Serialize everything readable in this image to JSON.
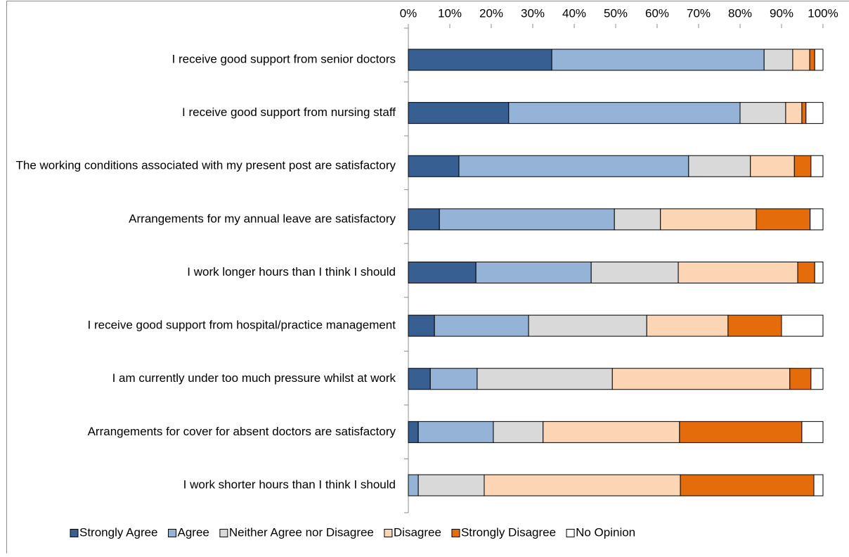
{
  "chart_data": {
    "type": "stacked_barh",
    "categories": [
      "I receive good support from senior doctors",
      "I receive good support from nursing staff",
      "The working conditions associated with my present post are satisfactory",
      "Arrangements for my annual leave are satisfactory",
      "I work longer hours than I think I should",
      "I receive good support from hospital/practice management",
      "I am currently under too much pressure whilst at work",
      "Arrangements for cover for absent doctors are satisfactory",
      "I work shorter hours than I think I should"
    ],
    "series": [
      {
        "name": "Strongly Agree",
        "color": "#375f92",
        "values": [
          34.6,
          24.2,
          12.2,
          7.5,
          16.3,
          6.3,
          5.3,
          2.4,
          0
        ]
      },
      {
        "name": "Agree",
        "color": "#95b3d7",
        "values": [
          51.2,
          55.8,
          55.4,
          42.2,
          27.8,
          22.7,
          11.3,
          18.1,
          2.4
        ]
      },
      {
        "name": "Neither Agree nor Disagree",
        "color": "#d9d9d9",
        "values": [
          6.9,
          11.0,
          14.9,
          11.1,
          21.0,
          28.5,
          32.6,
          12.0,
          15.9
        ]
      },
      {
        "name": "Disagree",
        "color": "#fcd5b5",
        "values": [
          4.1,
          3.9,
          10.6,
          23.1,
          28.8,
          19.6,
          42.8,
          32.9,
          47.3
        ]
      },
      {
        "name": "Strongly Disagree",
        "color": "#e46c0a",
        "values": [
          1.2,
          1.0,
          4.0,
          13.0,
          4.1,
          12.9,
          5.1,
          29.5,
          32.2
        ]
      },
      {
        "name": "No Opinion",
        "color": "#ffffff",
        "values": [
          2.0,
          4.1,
          2.9,
          3.1,
          2.0,
          10.0,
          2.9,
          5.1,
          2.2
        ]
      }
    ],
    "xlim": [
      0,
      100
    ],
    "xticks": [
      {
        "value": 0,
        "label": "0%"
      },
      {
        "value": 10,
        "label": "10%"
      },
      {
        "value": 20,
        "label": "20%"
      },
      {
        "value": 30,
        "label": "30%"
      },
      {
        "value": 40,
        "label": "40%"
      },
      {
        "value": 50,
        "label": "50%"
      },
      {
        "value": 60,
        "label": "60%"
      },
      {
        "value": 70,
        "label": "70%"
      },
      {
        "value": 80,
        "label": "80%"
      },
      {
        "value": 90,
        "label": "90%"
      },
      {
        "value": 100,
        "label": "100%"
      }
    ],
    "legend": "bottom"
  }
}
